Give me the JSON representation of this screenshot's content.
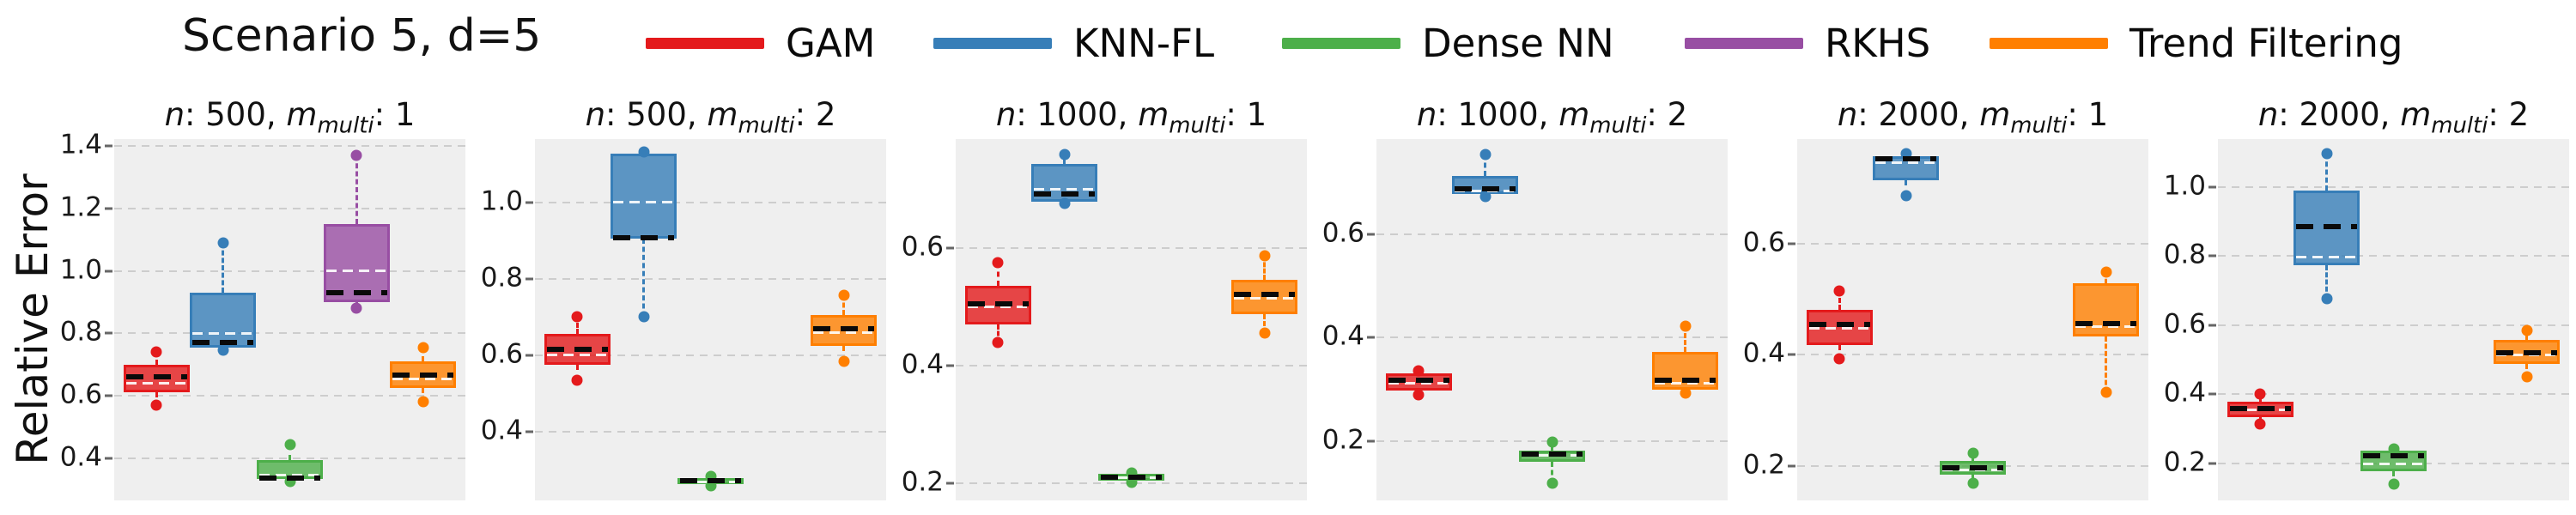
{
  "figure": {
    "title": "Scenario 5, d=5",
    "ylabel": "Relative Error",
    "background": "#ffffff",
    "plot_background": "#efefef",
    "gridline_color": "#cdcdcd"
  },
  "legend": {
    "items": [
      {
        "label": "GAM",
        "color": "#e41a1c"
      },
      {
        "label": "KNN-FL",
        "color": "#377eb8"
      },
      {
        "label": "Dense NN",
        "color": "#4daf4a"
      },
      {
        "label": "RKHS",
        "color": "#984ea3"
      },
      {
        "label": "Trend Filtering",
        "color": "#ff7f00"
      }
    ]
  },
  "chart_data": {
    "type": "bar",
    "subtype": "boxplot-grid",
    "title": "Scenario 5, d=5",
    "ylabel": "Relative Error",
    "grid": "on",
    "legend_position": "top",
    "series_colors": {
      "GAM": "#e41a1c",
      "KNN-FL": "#377eb8",
      "Dense NN": "#4daf4a",
      "RKHS": "#984ea3",
      "Trend Filtering": "#ff7f00"
    },
    "slot_fractions": [
      0.12,
      0.31,
      0.5,
      0.69,
      0.88
    ],
    "subplots": [
      {
        "title": {
          "n_label": "n",
          "n_value": "500",
          "m_label": "m",
          "m_sub": "multi",
          "m_value": "1",
          "text": "n: 500, m_multi: 1"
        },
        "ylim": [
          0.265,
          1.422
        ],
        "yticks": [
          0.4,
          0.6,
          0.8,
          1.0,
          1.2,
          1.4
        ],
        "boxes": [
          {
            "series": "GAM",
            "slot": 0,
            "whisker_low": 0.57,
            "q1": 0.61,
            "median": 0.64,
            "mean": 0.66,
            "q3": 0.7,
            "whisker_high": 0.74
          },
          {
            "series": "KNN-FL",
            "slot": 1,
            "whisker_low": 0.745,
            "q1": 0.755,
            "median": 0.8,
            "mean": 0.77,
            "q3": 0.93,
            "whisker_high": 1.09
          },
          {
            "series": "Dense NN",
            "slot": 2,
            "whisker_low": 0.325,
            "q1": 0.335,
            "median": 0.345,
            "mean": 0.337,
            "q3": 0.395,
            "whisker_high": 0.445
          },
          {
            "series": "RKHS",
            "slot": 3,
            "whisker_low": 0.88,
            "q1": 0.9,
            "median": 1.0,
            "mean": 0.93,
            "q3": 1.15,
            "whisker_high": 1.37
          },
          {
            "series": "Trend Filtering",
            "slot": 4,
            "whisker_low": 0.58,
            "q1": 0.625,
            "median": 0.655,
            "mean": 0.665,
            "q3": 0.71,
            "whisker_high": 0.755
          }
        ]
      },
      {
        "title": {
          "n_label": "n",
          "n_value": "500",
          "m_label": "m",
          "m_sub": "multi",
          "m_value": "2",
          "text": "n: 500, m_multi: 2"
        },
        "ylim": [
          0.22,
          1.166
        ],
        "yticks": [
          0.4,
          0.6,
          0.8,
          1.0
        ],
        "boxes": [
          {
            "series": "GAM",
            "slot": 0,
            "whisker_low": 0.535,
            "q1": 0.575,
            "median": 0.6,
            "mean": 0.615,
            "q3": 0.655,
            "whisker_high": 0.7
          },
          {
            "series": "KNN-FL",
            "slot": 1,
            "whisker_low": 0.7,
            "q1": 0.905,
            "median": 1.0,
            "mean": 0.908,
            "q3": 1.128,
            "whisker_high": 1.133
          },
          {
            "series": "Dense NN",
            "slot": 2,
            "whisker_low": 0.258,
            "q1": 0.262,
            "median": 0.268,
            "mean": 0.272,
            "q3": 0.279,
            "whisker_high": 0.282
          },
          {
            "series": "Trend Filtering",
            "slot": 4,
            "whisker_low": 0.585,
            "q1": 0.625,
            "median": 0.66,
            "mean": 0.67,
            "q3": 0.705,
            "whisker_high": 0.757
          }
        ]
      },
      {
        "title": {
          "n_label": "n",
          "n_value": "1000",
          "m_label": "m",
          "m_sub": "multi",
          "m_value": "1",
          "text": "n: 1000, m_multi: 1"
        },
        "ylim": [
          0.171,
          0.785
        ],
        "yticks": [
          0.2,
          0.4,
          0.6
        ],
        "boxes": [
          {
            "series": "GAM",
            "slot": 0,
            "whisker_low": 0.44,
            "q1": 0.47,
            "median": 0.5,
            "mean": 0.505,
            "q3": 0.535,
            "whisker_high": 0.575
          },
          {
            "series": "KNN-FL",
            "slot": 1,
            "whisker_low": 0.676,
            "q1": 0.678,
            "median": 0.7,
            "mean": 0.692,
            "q3": 0.743,
            "whisker_high": 0.759
          },
          {
            "series": "Dense NN",
            "slot": 2,
            "whisker_low": 0.202,
            "q1": 0.205,
            "median": 0.209,
            "mean": 0.211,
            "q3": 0.216,
            "whisker_high": 0.218
          },
          {
            "series": "Trend Filtering",
            "slot": 4,
            "whisker_low": 0.455,
            "q1": 0.487,
            "median": 0.515,
            "mean": 0.521,
            "q3": 0.546,
            "whisker_high": 0.586
          }
        ]
      },
      {
        "title": {
          "n_label": "n",
          "n_value": "1000",
          "m_label": "m",
          "m_sub": "multi",
          "m_value": "2",
          "text": "n: 1000, m_multi: 2"
        },
        "ylim": [
          0.085,
          0.784
        ],
        "yticks": [
          0.2,
          0.4,
          0.6
        ],
        "boxes": [
          {
            "series": "GAM",
            "slot": 0,
            "whisker_low": 0.29,
            "q1": 0.297,
            "median": 0.312,
            "mean": 0.318,
            "q3": 0.33,
            "whisker_high": 0.336
          },
          {
            "series": "KNN-FL",
            "slot": 1,
            "whisker_low": 0.673,
            "q1": 0.677,
            "median": 0.684,
            "mean": 0.688,
            "q3": 0.713,
            "whisker_high": 0.754
          },
          {
            "series": "Dense NN",
            "slot": 2,
            "whisker_low": 0.118,
            "q1": 0.16,
            "median": 0.172,
            "mean": 0.175,
            "q3": 0.182,
            "whisker_high": 0.198
          },
          {
            "series": "Trend Filtering",
            "slot": 4,
            "whisker_low": 0.293,
            "q1": 0.3,
            "median": 0.312,
            "mean": 0.318,
            "q3": 0.372,
            "whisker_high": 0.422
          }
        ]
      },
      {
        "title": {
          "n_label": "n",
          "n_value": "2000",
          "m_label": "m",
          "m_sub": "multi",
          "m_value": "1",
          "text": "n: 2000, m_multi: 1"
        },
        "ylim": [
          0.138,
          0.788
        ],
        "yticks": [
          0.2,
          0.4,
          0.6
        ],
        "boxes": [
          {
            "series": "GAM",
            "slot": 0,
            "whisker_low": 0.393,
            "q1": 0.418,
            "median": 0.448,
            "mean": 0.455,
            "q3": 0.48,
            "whisker_high": 0.514
          },
          {
            "series": "KNN-FL",
            "slot": 1,
            "whisker_low": 0.686,
            "q1": 0.714,
            "median": 0.745,
            "mean": 0.753,
            "q3": 0.757,
            "whisker_high": 0.762
          },
          {
            "series": "Dense NN",
            "slot": 2,
            "whisker_low": 0.169,
            "q1": 0.185,
            "median": 0.193,
            "mean": 0.197,
            "q3": 0.209,
            "whisker_high": 0.223
          },
          {
            "series": "Trend Filtering",
            "slot": 4,
            "whisker_low": 0.333,
            "q1": 0.433,
            "median": 0.45,
            "mean": 0.456,
            "q3": 0.529,
            "whisker_high": 0.549
          }
        ]
      },
      {
        "title": {
          "n_label": "n",
          "n_value": "2000",
          "m_label": "m",
          "m_sub": "multi",
          "m_value": "2",
          "text": "n: 2000, m_multi: 2"
        },
        "ylim": [
          0.093,
          1.139
        ],
        "yticks": [
          0.2,
          0.4,
          0.6,
          0.8,
          1.0
        ],
        "boxes": [
          {
            "series": "GAM",
            "slot": 0,
            "whisker_low": 0.315,
            "q1": 0.335,
            "median": 0.355,
            "mean": 0.36,
            "q3": 0.378,
            "whisker_high": 0.402
          },
          {
            "series": "KNN-FL",
            "slot": 1,
            "whisker_low": 0.678,
            "q1": 0.775,
            "median": 0.798,
            "mean": 0.885,
            "q3": 0.99,
            "whisker_high": 1.098
          },
          {
            "series": "Dense NN",
            "slot": 2,
            "whisker_low": 0.14,
            "q1": 0.178,
            "median": 0.198,
            "mean": 0.223,
            "q3": 0.238,
            "whisker_high": 0.243
          },
          {
            "series": "Trend Filtering",
            "slot": 4,
            "whisker_low": 0.45,
            "q1": 0.488,
            "median": 0.515,
            "mean": 0.52,
            "q3": 0.557,
            "whisker_high": 0.585
          }
        ]
      }
    ]
  }
}
